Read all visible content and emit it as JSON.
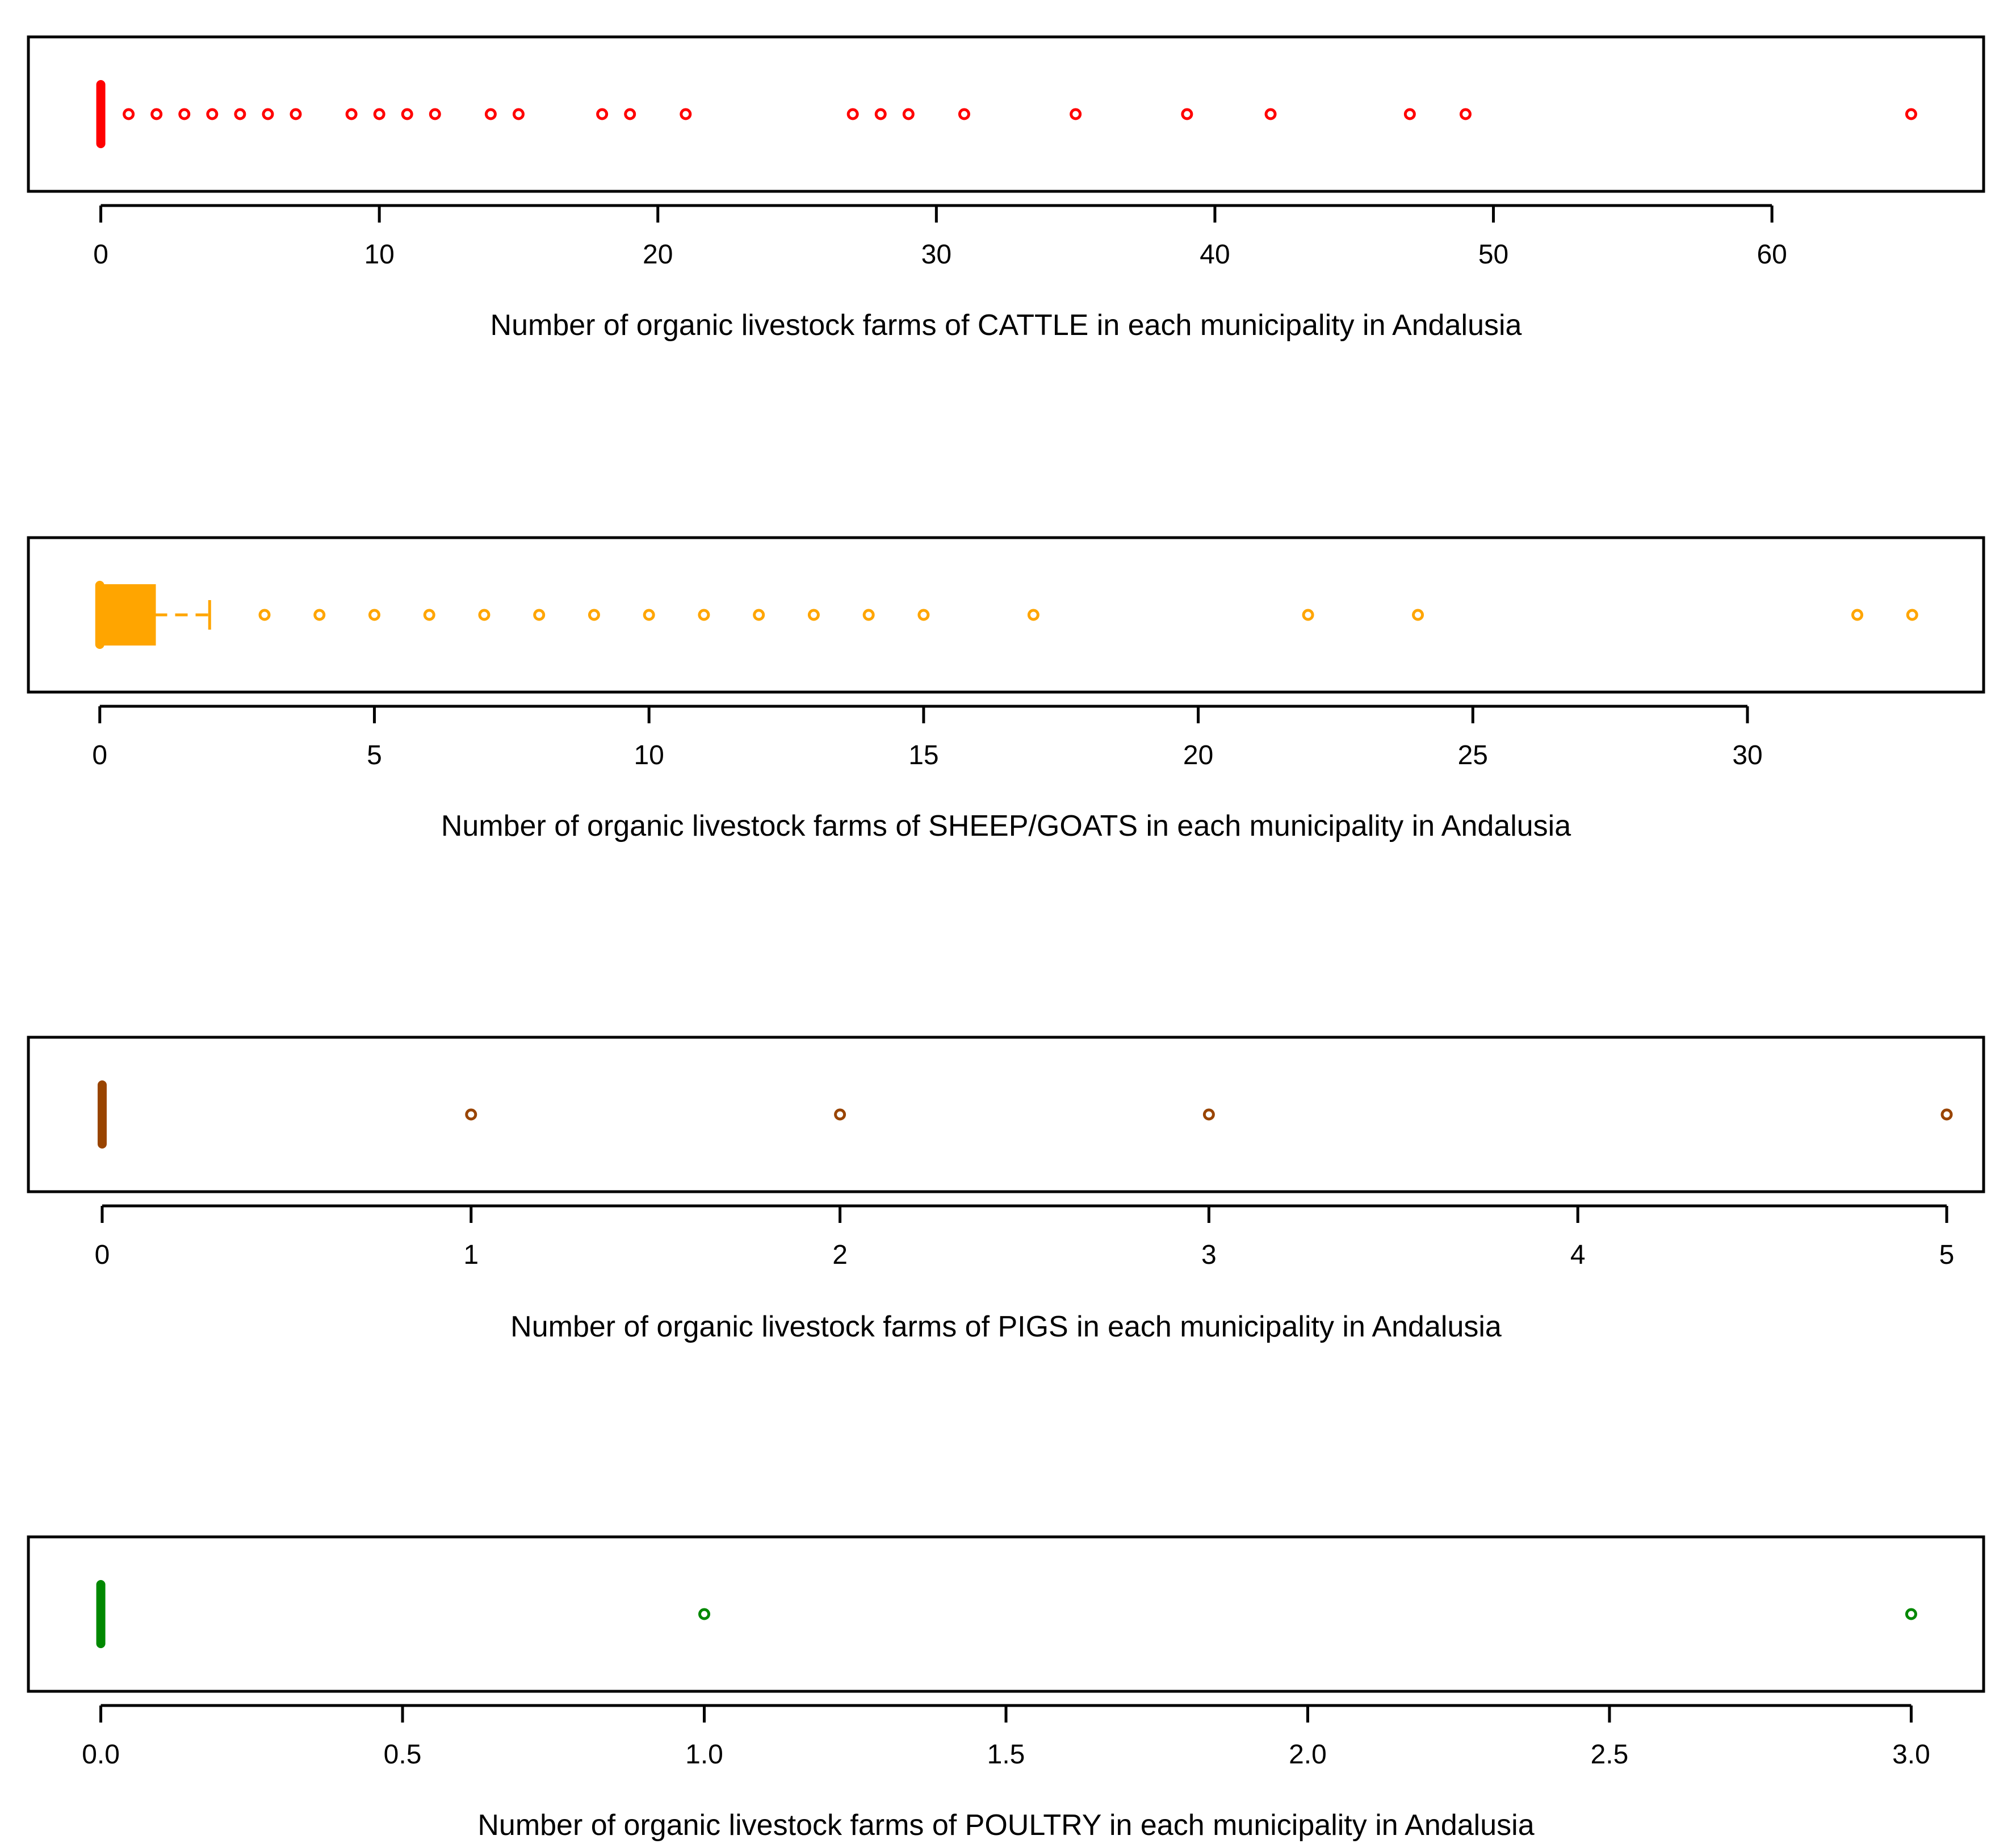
{
  "chart_data": [
    {
      "type": "boxplot",
      "orientation": "horizontal",
      "name": "cattle",
      "color": "#ff0000",
      "xlabel": "Number of organic livestock farms of CATTLE in each municipality in Andalusia",
      "xlim": [
        -2.6,
        67.6
      ],
      "ticks": [
        0,
        10,
        20,
        30,
        40,
        50,
        60
      ],
      "tick_labels": [
        "0",
        "10",
        "20",
        "30",
        "40",
        "50",
        "60"
      ],
      "box": {
        "q1": 0,
        "median": 0,
        "q3": 0,
        "whisker_low": 0,
        "whisker_high": 0
      },
      "outliers": [
        1,
        2,
        3,
        4,
        5,
        6,
        7,
        9,
        10,
        11,
        12,
        14,
        15,
        18,
        19,
        21,
        27,
        28,
        29,
        31,
        35,
        39,
        42,
        47,
        49,
        65
      ]
    },
    {
      "type": "boxplot",
      "orientation": "horizontal",
      "name": "sheep-goats",
      "color": "#ffa500",
      "xlabel": "Number of organic livestock farms of SHEEP/GOATS in each municipality in Andalusia",
      "xlim": [
        -1.3,
        34.3
      ],
      "ticks": [
        0,
        5,
        10,
        15,
        20,
        25,
        30
      ],
      "tick_labels": [
        "0",
        "5",
        "10",
        "15",
        "20",
        "25",
        "30"
      ],
      "box": {
        "q1": 0,
        "median": 0,
        "q3": 1,
        "whisker_low": 0,
        "whisker_high": 2
      },
      "outliers": [
        3,
        4,
        5,
        6,
        7,
        8,
        9,
        10,
        11,
        12,
        13,
        14,
        15,
        17,
        22,
        24,
        32,
        33
      ]
    },
    {
      "type": "boxplot",
      "orientation": "horizontal",
      "name": "pigs",
      "color": "#994400",
      "xlabel": "Number of organic livestock farms of PIGS in each municipality in Andalusia",
      "xlim": [
        -0.2,
        5.1
      ],
      "ticks": [
        0,
        1,
        2,
        3,
        4,
        5
      ],
      "tick_labels": [
        "0",
        "1",
        "2",
        "3",
        "4",
        "5"
      ],
      "box": {
        "q1": 0,
        "median": 0,
        "q3": 0,
        "whisker_low": 0,
        "whisker_high": 0
      },
      "outliers": [
        1,
        2,
        3,
        5
      ]
    },
    {
      "type": "boxplot",
      "orientation": "horizontal",
      "name": "poultry",
      "color": "#008800",
      "xlabel": "Number of organic livestock farms of POULTRY in each municipality in Andalusia",
      "xlim": [
        -0.12,
        3.12
      ],
      "ticks": [
        0,
        0.5,
        1,
        1.5,
        2,
        2.5,
        3
      ],
      "tick_labels": [
        "0.0",
        "0.5",
        "1.0",
        "1.5",
        "2.0",
        "2.5",
        "3.0"
      ],
      "box": {
        "q1": 0,
        "median": 0,
        "q3": 0,
        "whisker_low": 0,
        "whisker_high": 0
      },
      "outliers": [
        1,
        3
      ]
    }
  ]
}
